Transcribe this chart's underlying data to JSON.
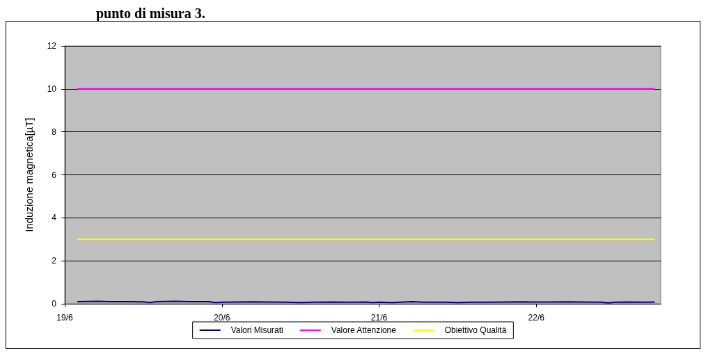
{
  "chart_data": {
    "type": "line",
    "title": "punto di misura 3.",
    "ylabel": "Induzione magnetica[µT]",
    "xlim": [
      "--06-19T00:00",
      "--06-22T19:00"
    ],
    "xticks": [
      {
        "value": "--06-19",
        "label": "19/6"
      },
      {
        "value": "--06-20",
        "label": "20/6"
      },
      {
        "value": "--06-21",
        "label": "21/6"
      },
      {
        "value": "--06-22",
        "label": "22/6"
      }
    ],
    "ylim": [
      0,
      12
    ],
    "yticks": [
      0,
      2,
      4,
      6,
      8,
      10,
      12
    ],
    "grid": "y",
    "legend": "bottom",
    "marker": "none",
    "line_style": "solid",
    "series": [
      {
        "name": "Valori Misurati",
        "color": "#000080",
        "x": [
          "--06-19T02:00",
          "--06-19T05:00",
          "--06-19T07:00",
          "--06-19T10:00",
          "--06-19T12:00",
          "--06-19T13:00",
          "--06-19T14:00",
          "--06-19T17:00",
          "--06-19T19:00",
          "--06-19T22:00",
          "--06-19T23:00",
          "--06-20T00:00",
          "--06-20T02:00",
          "--06-20T05:00",
          "--06-20T07:00",
          "--06-20T10:00",
          "--06-20T12:00",
          "--06-20T14:00",
          "--06-20T17:00",
          "--06-20T19:00",
          "--06-20T22:00",
          "--06-20T23:00",
          "--06-21T00:00",
          "--06-21T02:00",
          "--06-21T05:00",
          "--06-21T07:00",
          "--06-21T10:00",
          "--06-21T12:00",
          "--06-21T14:00",
          "--06-21T17:00",
          "--06-21T19:00",
          "--06-21T22:00",
          "--06-22T00:00",
          "--06-22T02:00",
          "--06-22T05:00",
          "--06-22T07:00",
          "--06-22T10:00",
          "--06-22T11:00",
          "--06-22T12:00",
          "--06-22T14:00",
          "--06-22T17:00",
          "--06-22T18:00"
        ],
        "values": [
          0.1,
          0.11,
          0.1,
          0.1,
          0.09,
          0.06,
          0.1,
          0.11,
          0.1,
          0.1,
          0.06,
          0.07,
          0.08,
          0.09,
          0.08,
          0.07,
          0.06,
          0.07,
          0.08,
          0.07,
          0.08,
          0.06,
          0.07,
          0.06,
          0.1,
          0.07,
          0.07,
          0.06,
          0.07,
          0.07,
          0.08,
          0.09,
          0.08,
          0.08,
          0.09,
          0.08,
          0.07,
          0.04,
          0.07,
          0.08,
          0.07,
          0.08
        ]
      },
      {
        "name": "Valore Attenzione",
        "color": "#ff00ff",
        "x": [
          "--06-19T02:00",
          "--06-22T18:00"
        ],
        "values": [
          10,
          10
        ]
      },
      {
        "name": "Obiettivo Qualità",
        "color": "#ffff00",
        "x": [
          "--06-19T02:00",
          "--06-22T18:00"
        ],
        "values": [
          3,
          3
        ]
      }
    ]
  }
}
